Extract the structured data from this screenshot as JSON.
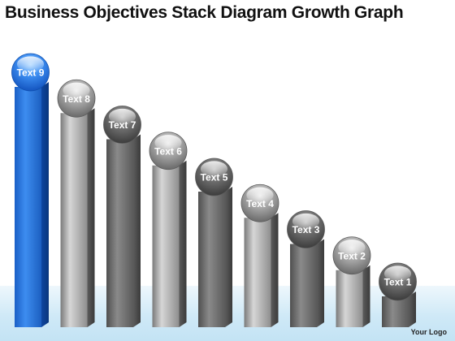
{
  "title": "Business Objectives Stack Diagram Growth Graph",
  "logo_text": "Your Logo",
  "colors": {
    "highlight": "#2f7fdc",
    "highlight_dark": "#0f4fae",
    "bar_light": "#d2d2d2",
    "bar_dark": "#6b6b6b",
    "floor": "#cfe9f7"
  },
  "chart_data": {
    "type": "bar",
    "categories": [
      "Text 9",
      "Text 8",
      "Text 7",
      "Text 6",
      "Text 5",
      "Text 4",
      "Text 3",
      "Text 2",
      "Text 1"
    ],
    "values": [
      9,
      8,
      7,
      6,
      5,
      4,
      3,
      2,
      1
    ],
    "highlighted_index": 0,
    "ylim": [
      0,
      9
    ]
  }
}
